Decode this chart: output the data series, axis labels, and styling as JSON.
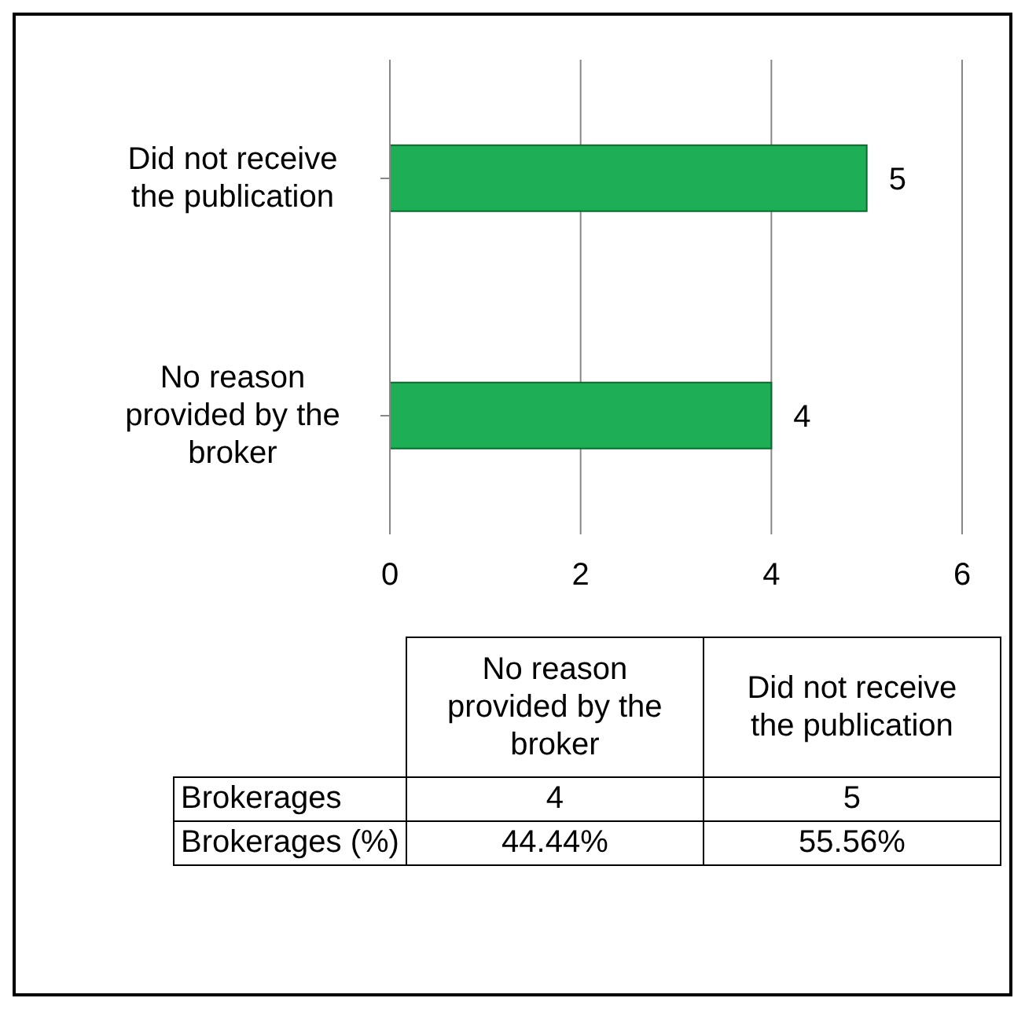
{
  "chart_data": {
    "type": "bar",
    "orientation": "horizontal",
    "categories": [
      "Did not receive the publication",
      "No reason provided by the broker"
    ],
    "series": [
      {
        "name": "Brokerages",
        "color": "#1eae55",
        "values": [
          5,
          4
        ]
      }
    ],
    "xlim": [
      0,
      6
    ],
    "xticks": [
      0,
      2,
      4,
      6
    ],
    "grid": "x",
    "data_labels": true,
    "annotations": [
      "5",
      "4",
      "Brokerages (%)",
      "55.56%",
      "44.44%"
    ]
  }
}
